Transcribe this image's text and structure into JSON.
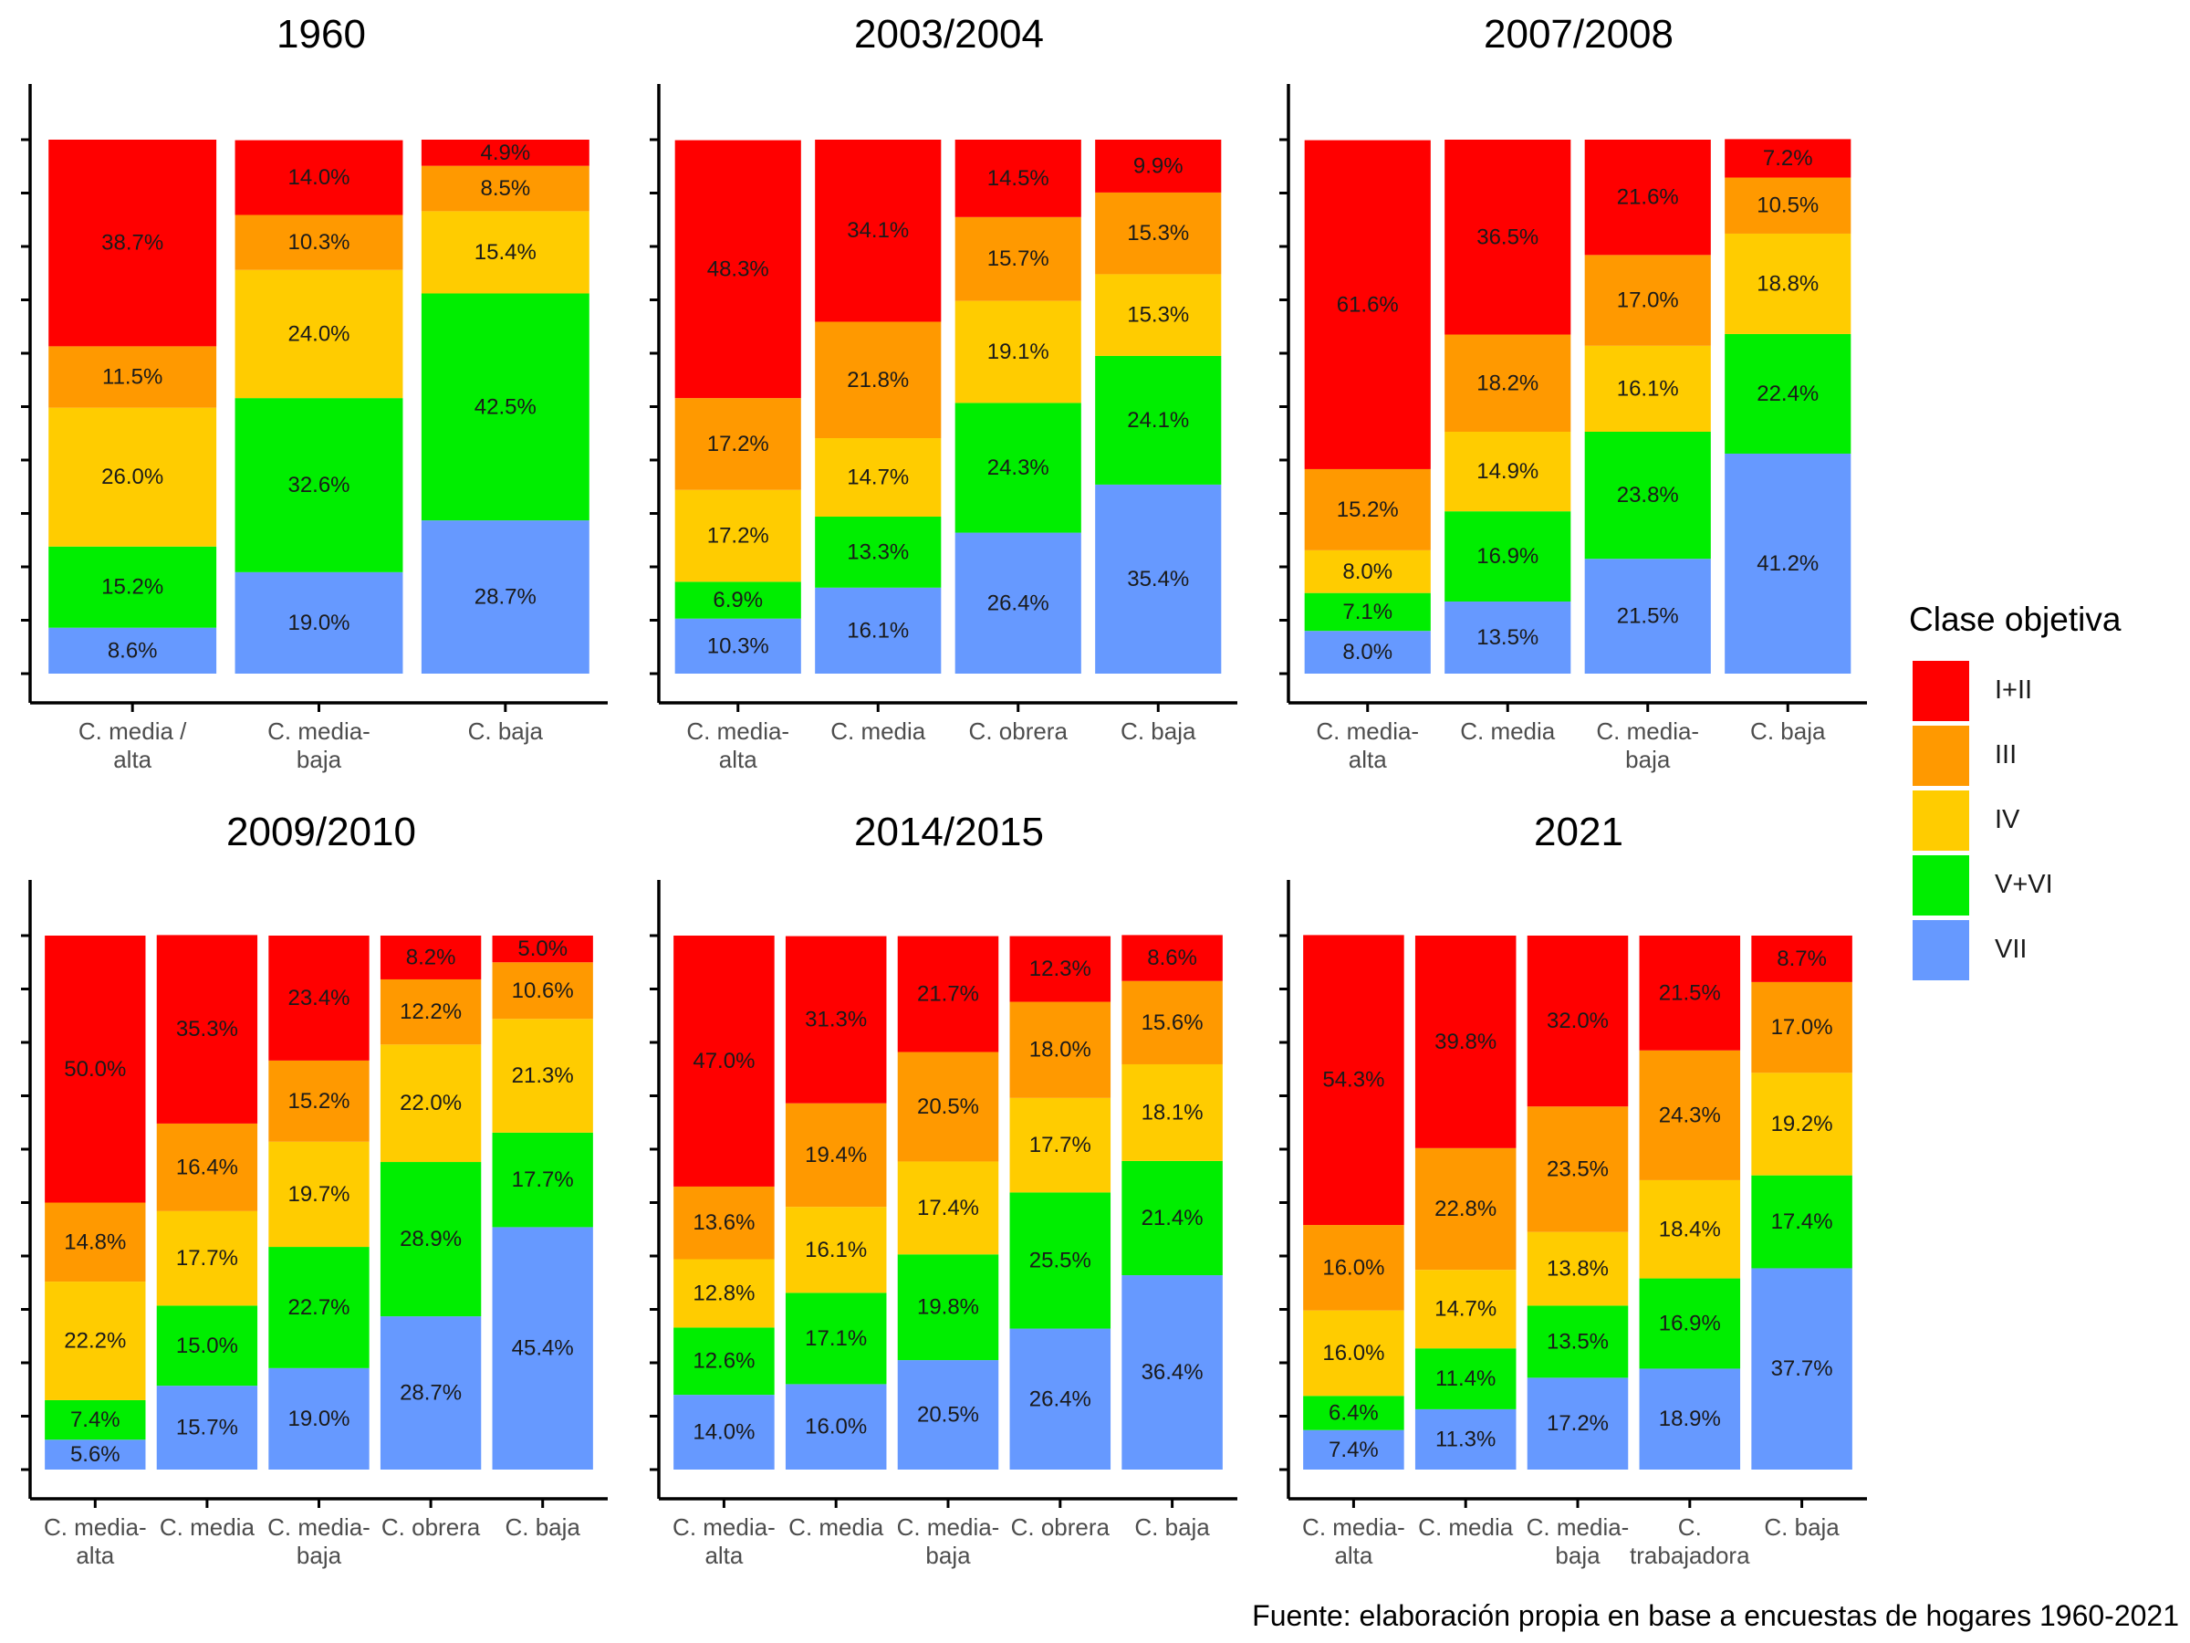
{
  "chart_data": [
    {
      "type": "bar",
      "title": "1960",
      "categories": [
        "C. media / alta",
        "C. media-baja",
        "C. baja"
      ],
      "ylim": [
        0,
        100
      ],
      "series": [
        {
          "name": "VII",
          "values": [
            8.6,
            19.0,
            28.7
          ]
        },
        {
          "name": "V+VI",
          "values": [
            15.2,
            32.6,
            42.5
          ]
        },
        {
          "name": "IV",
          "values": [
            26.0,
            24.0,
            15.4
          ]
        },
        {
          "name": "III",
          "values": [
            11.5,
            10.3,
            8.5
          ]
        },
        {
          "name": "I+II",
          "values": [
            38.7,
            14.0,
            4.9
          ]
        }
      ]
    },
    {
      "type": "bar",
      "title": "2003/2004",
      "categories": [
        "C. media-alta",
        "C. media",
        "C. obrera",
        "C. baja"
      ],
      "ylim": [
        0,
        100
      ],
      "series": [
        {
          "name": "VII",
          "values": [
            10.3,
            16.1,
            26.4,
            35.4
          ]
        },
        {
          "name": "V+VI",
          "values": [
            6.9,
            13.3,
            24.3,
            24.1
          ]
        },
        {
          "name": "IV",
          "values": [
            17.2,
            14.7,
            19.1,
            15.3
          ]
        },
        {
          "name": "III",
          "values": [
            17.2,
            21.8,
            15.7,
            15.3
          ]
        },
        {
          "name": "I+II",
          "values": [
            48.3,
            34.1,
            14.5,
            9.9
          ]
        }
      ]
    },
    {
      "type": "bar",
      "title": "2007/2008",
      "categories": [
        "C. media-alta",
        "C. media",
        "C. media-baja",
        "C. baja"
      ],
      "ylim": [
        0,
        100
      ],
      "series": [
        {
          "name": "VII",
          "values": [
            8.0,
            13.5,
            21.5,
            41.2
          ]
        },
        {
          "name": "V+VI",
          "values": [
            7.1,
            16.9,
            23.8,
            22.4
          ]
        },
        {
          "name": "IV",
          "values": [
            8.0,
            14.9,
            16.1,
            18.8
          ]
        },
        {
          "name": "III",
          "values": [
            15.2,
            18.2,
            17.0,
            10.5
          ]
        },
        {
          "name": "I+II",
          "values": [
            61.6,
            36.5,
            21.6,
            7.2
          ]
        }
      ]
    },
    {
      "type": "bar",
      "title": "2009/2010",
      "categories": [
        "C. media-alta",
        "C. media",
        "C. media-baja",
        "C. obrera",
        "C. baja"
      ],
      "ylim": [
        0,
        100
      ],
      "series": [
        {
          "name": "VII",
          "values": [
            5.6,
            15.7,
            19.0,
            28.7,
            45.4
          ]
        },
        {
          "name": "V+VI",
          "values": [
            7.4,
            15.0,
            22.7,
            28.9,
            17.7
          ]
        },
        {
          "name": "IV",
          "values": [
            22.2,
            17.7,
            19.7,
            22.0,
            21.3
          ]
        },
        {
          "name": "III",
          "values": [
            14.8,
            16.4,
            15.2,
            12.2,
            10.6
          ]
        },
        {
          "name": "I+II",
          "values": [
            50.0,
            35.3,
            23.4,
            8.2,
            5.0
          ]
        }
      ]
    },
    {
      "type": "bar",
      "title": "2014/2015",
      "categories": [
        "C. media-alta",
        "C. media",
        "C. media-baja",
        "C. obrera",
        "C. baja"
      ],
      "ylim": [
        0,
        100
      ],
      "series": [
        {
          "name": "VII",
          "values": [
            14.0,
            16.0,
            20.5,
            26.4,
            36.4
          ]
        },
        {
          "name": "V+VI",
          "values": [
            12.6,
            17.1,
            19.8,
            25.5,
            21.4
          ]
        },
        {
          "name": "IV",
          "values": [
            12.8,
            16.1,
            17.4,
            17.7,
            18.1
          ]
        },
        {
          "name": "III",
          "values": [
            13.6,
            19.4,
            20.5,
            18.0,
            15.6
          ]
        },
        {
          "name": "I+II",
          "values": [
            47.0,
            31.3,
            21.7,
            12.3,
            8.6
          ]
        }
      ]
    },
    {
      "type": "bar",
      "title": "2021",
      "categories": [
        "C. media-alta",
        "C. media",
        "C. media-baja",
        "C. trabajadora",
        "C. baja"
      ],
      "ylim": [
        0,
        100
      ],
      "series": [
        {
          "name": "VII",
          "values": [
            7.4,
            11.3,
            17.2,
            18.9,
            37.7
          ]
        },
        {
          "name": "V+VI",
          "values": [
            6.4,
            11.4,
            13.5,
            16.9,
            17.4
          ]
        },
        {
          "name": "IV",
          "values": [
            16.0,
            14.7,
            13.8,
            18.4,
            19.2
          ]
        },
        {
          "name": "III",
          "values": [
            16.0,
            22.8,
            23.5,
            24.3,
            17.0
          ]
        },
        {
          "name": "I+II",
          "values": [
            54.3,
            39.8,
            32.0,
            21.5,
            8.7
          ]
        }
      ]
    }
  ],
  "colors": {
    "I+II": "#FF0000",
    "III": "#FF9900",
    "IV": "#FFCC00",
    "V+VI": "#00EE00",
    "VII": "#6699FF"
  },
  "legend": {
    "title": "Clase objetiva",
    "items": [
      {
        "label": "I+II",
        "color": "#FF0000"
      },
      {
        "label": "III",
        "color": "#FF9900"
      },
      {
        "label": "IV",
        "color": "#FFCC00"
      },
      {
        "label": "V+VI",
        "color": "#00EE00"
      },
      {
        "label": "VII",
        "color": "#6699FF"
      }
    ]
  },
  "caption": "Fuente: elaboración propia en base a encuestas de hogares 1960-2021"
}
